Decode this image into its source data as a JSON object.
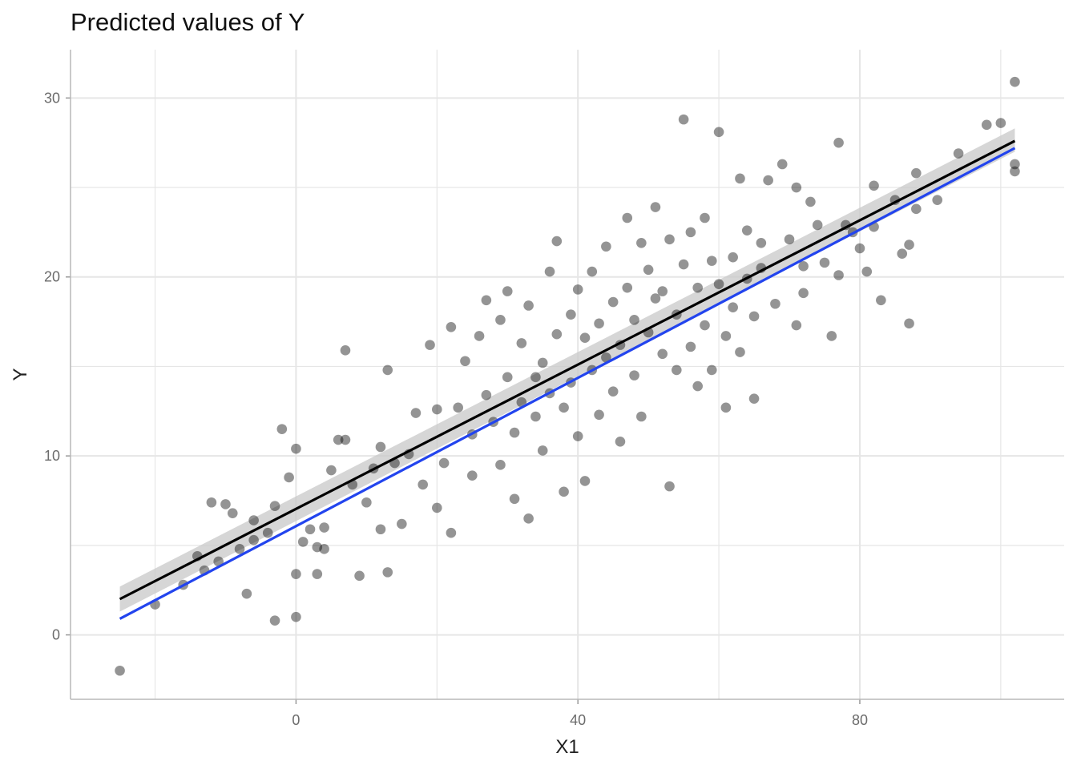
{
  "chart_data": {
    "type": "scatter",
    "title": "Predicted values of Y",
    "xlabel": "X1",
    "ylabel": "Y",
    "xlim": [
      -32,
      109
    ],
    "ylim": [
      -3.6,
      32.7
    ],
    "x_ticks": [
      {
        "value": 0,
        "label": "0"
      },
      {
        "value": 40,
        "label": "40"
      },
      {
        "value": 80,
        "label": "80"
      }
    ],
    "y_ticks": [
      {
        "value": 0,
        "label": "0"
      },
      {
        "value": 10,
        "label": "10"
      },
      {
        "value": 20,
        "label": "20"
      },
      {
        "value": 30,
        "label": "30"
      }
    ],
    "grid": true,
    "legend": "none",
    "colors": {
      "points": "#000000",
      "fit_line": "#000000",
      "smooth_line": "#2244ee",
      "band": "#c8c8c8",
      "grid": "#e6e6e6"
    },
    "series": [
      {
        "kind": "points",
        "points": [
          [
            -25,
            -2.0
          ],
          [
            -20,
            1.7
          ],
          [
            -16,
            2.8
          ],
          [
            -14,
            4.4
          ],
          [
            -13,
            3.6
          ],
          [
            -12,
            7.4
          ],
          [
            -11,
            4.1
          ],
          [
            -10,
            7.3
          ],
          [
            -9,
            6.8
          ],
          [
            -7,
            2.3
          ],
          [
            -8,
            4.8
          ],
          [
            -6,
            6.4
          ],
          [
            -6,
            5.3
          ],
          [
            -4,
            5.7
          ],
          [
            -3,
            7.2
          ],
          [
            -3,
            0.8
          ],
          [
            0,
            1.0
          ],
          [
            -1,
            8.8
          ],
          [
            -2,
            11.5
          ],
          [
            0,
            10.4
          ],
          [
            0,
            3.4
          ],
          [
            1,
            5.2
          ],
          [
            2,
            5.9
          ],
          [
            3,
            3.4
          ],
          [
            3,
            4.9
          ],
          [
            4,
            6.0
          ],
          [
            4,
            4.8
          ],
          [
            5,
            9.2
          ],
          [
            6,
            10.9
          ],
          [
            7,
            10.9
          ],
          [
            7,
            15.9
          ],
          [
            8,
            8.4
          ],
          [
            9,
            3.3
          ],
          [
            10,
            7.4
          ],
          [
            11,
            9.3
          ],
          [
            12,
            10.5
          ],
          [
            12,
            5.9
          ],
          [
            13,
            3.5
          ],
          [
            13,
            14.8
          ],
          [
            14,
            9.6
          ],
          [
            15,
            6.2
          ],
          [
            16,
            10.1
          ],
          [
            17,
            12.4
          ],
          [
            18,
            8.4
          ],
          [
            19,
            16.2
          ],
          [
            20,
            12.6
          ],
          [
            20,
            7.1
          ],
          [
            21,
            9.6
          ],
          [
            22,
            17.2
          ],
          [
            22,
            5.7
          ],
          [
            23,
            12.7
          ],
          [
            24,
            15.3
          ],
          [
            25,
            11.2
          ],
          [
            25,
            8.9
          ],
          [
            26,
            16.7
          ],
          [
            27,
            13.4
          ],
          [
            27,
            18.7
          ],
          [
            28,
            11.9
          ],
          [
            29,
            17.6
          ],
          [
            29,
            9.5
          ],
          [
            30,
            14.4
          ],
          [
            30,
            19.2
          ],
          [
            31,
            7.6
          ],
          [
            31,
            11.3
          ],
          [
            32,
            16.3
          ],
          [
            32,
            13.0
          ],
          [
            33,
            6.5
          ],
          [
            33,
            18.4
          ],
          [
            34,
            12.2
          ],
          [
            34,
            14.4
          ],
          [
            35,
            15.2
          ],
          [
            35,
            10.3
          ],
          [
            36,
            20.3
          ],
          [
            36,
            13.5
          ],
          [
            37,
            22.0
          ],
          [
            37,
            16.8
          ],
          [
            38,
            12.7
          ],
          [
            38,
            8.0
          ],
          [
            39,
            17.9
          ],
          [
            39,
            14.1
          ],
          [
            40,
            19.3
          ],
          [
            40,
            11.1
          ],
          [
            41,
            8.6
          ],
          [
            41,
            16.6
          ],
          [
            42,
            14.8
          ],
          [
            42,
            20.3
          ],
          [
            43,
            17.4
          ],
          [
            43,
            12.3
          ],
          [
            44,
            21.7
          ],
          [
            44,
            15.5
          ],
          [
            45,
            18.6
          ],
          [
            45,
            13.6
          ],
          [
            46,
            16.2
          ],
          [
            46,
            10.8
          ],
          [
            47,
            19.4
          ],
          [
            47,
            23.3
          ],
          [
            48,
            17.6
          ],
          [
            48,
            14.5
          ],
          [
            49,
            21.9
          ],
          [
            49,
            12.2
          ],
          [
            50,
            20.4
          ],
          [
            50,
            16.9
          ],
          [
            51,
            18.8
          ],
          [
            51,
            23.9
          ],
          [
            52,
            15.7
          ],
          [
            52,
            19.2
          ],
          [
            53,
            8.3
          ],
          [
            53,
            22.1
          ],
          [
            54,
            17.9
          ],
          [
            54,
            14.8
          ],
          [
            55,
            20.7
          ],
          [
            55,
            28.8
          ],
          [
            56,
            16.1
          ],
          [
            56,
            22.5
          ],
          [
            57,
            19.4
          ],
          [
            57,
            13.9
          ],
          [
            58,
            23.3
          ],
          [
            58,
            17.3
          ],
          [
            59,
            20.9
          ],
          [
            59,
            14.8
          ],
          [
            60,
            19.6
          ],
          [
            60,
            28.1
          ],
          [
            61,
            16.7
          ],
          [
            61,
            12.7
          ],
          [
            62,
            21.1
          ],
          [
            62,
            18.3
          ],
          [
            63,
            25.5
          ],
          [
            63,
            15.8
          ],
          [
            64,
            19.9
          ],
          [
            64,
            22.6
          ],
          [
            65,
            13.2
          ],
          [
            65,
            17.8
          ],
          [
            66,
            21.9
          ],
          [
            66,
            20.5
          ],
          [
            67,
            25.4
          ],
          [
            68,
            18.5
          ],
          [
            69,
            26.3
          ],
          [
            70,
            22.1
          ],
          [
            71,
            17.3
          ],
          [
            71,
            25.0
          ],
          [
            72,
            20.6
          ],
          [
            72,
            19.1
          ],
          [
            73,
            24.2
          ],
          [
            74,
            22.9
          ],
          [
            75,
            20.8
          ],
          [
            76,
            16.7
          ],
          [
            77,
            27.5
          ],
          [
            77,
            20.1
          ],
          [
            78,
            22.9
          ],
          [
            79,
            22.5
          ],
          [
            80,
            21.6
          ],
          [
            81,
            20.3
          ],
          [
            82,
            25.1
          ],
          [
            82,
            22.8
          ],
          [
            83,
            18.7
          ],
          [
            85,
            24.3
          ],
          [
            86,
            21.3
          ],
          [
            87,
            17.4
          ],
          [
            87,
            21.8
          ],
          [
            88,
            23.8
          ],
          [
            88,
            25.8
          ],
          [
            91,
            24.3
          ],
          [
            94,
            26.9
          ],
          [
            98,
            28.5
          ],
          [
            100,
            28.6
          ],
          [
            102,
            30.9
          ],
          [
            102,
            26.3
          ],
          [
            102,
            25.9
          ]
        ]
      },
      {
        "kind": "line",
        "x": [
          -25,
          102
        ],
        "y": [
          2.0,
          27.6
        ]
      },
      {
        "kind": "line",
        "x": [
          -25,
          102
        ],
        "y": [
          0.9,
          27.2
        ]
      },
      {
        "kind": "band",
        "x": [
          -25,
          102
        ],
        "lower": [
          1.3,
          27.0
        ],
        "upper": [
          2.7,
          28.3
        ]
      }
    ]
  }
}
